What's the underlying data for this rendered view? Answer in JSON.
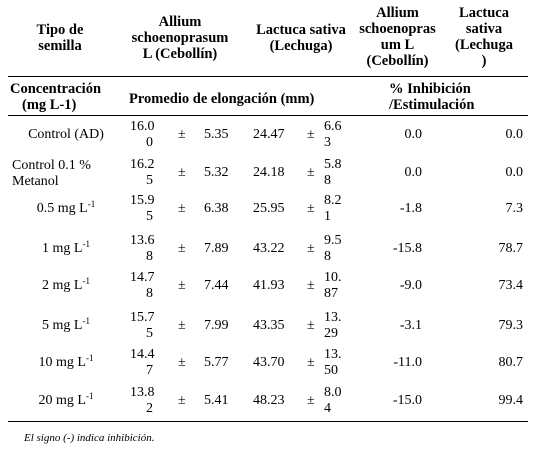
{
  "headers": {
    "tipo": [
      "Tipo de",
      "semilla"
    ],
    "allium": [
      "Allium",
      "schoenoprasum",
      "L (Cebollín)"
    ],
    "lactuca": [
      "Lactuca sativa",
      "(Lechuga)"
    ],
    "allium_inh": [
      "Allium",
      "schoenopras",
      "um L",
      "(Cebollín)"
    ],
    "lactuca_inh": [
      "Lactuca",
      "sativa",
      "(Lechuga",
      ")"
    ]
  },
  "subheaders": {
    "concentracion": [
      "Concentración",
      "(mg L-1)"
    ],
    "promedio": "Promedio de elongación (mm)",
    "inhibicion": [
      "% Inhibición",
      "/Estimulación"
    ]
  },
  "pm": "±",
  "rows": [
    {
      "label": [
        "Control (AD)"
      ],
      "label_sup": "",
      "a_mean": [
        "16.0",
        "0"
      ],
      "a_sd": "5.35",
      "l_mean": "24.47",
      "l_sd": [
        "6.6",
        "3"
      ],
      "a_inh": "0.0",
      "l_inh": "0.0"
    },
    {
      "label": [
        "Control 0.1 %",
        "Metanol"
      ],
      "label_sup": "",
      "a_mean": [
        "16.2",
        "5"
      ],
      "a_sd": "5.32",
      "l_mean": "24.18",
      "l_sd": [
        "5.8",
        "8"
      ],
      "a_inh": "0.0",
      "l_inh": "0.0"
    },
    {
      "label": [
        "0.5 mg L"
      ],
      "label_sup": "-1",
      "a_mean": [
        "15.9",
        "5"
      ],
      "a_sd": "6.38",
      "l_mean": "25.95",
      "l_sd": [
        "8.2",
        "1"
      ],
      "a_inh": "-1.8",
      "l_inh": "7.3"
    },
    {
      "label": [
        "1 mg L"
      ],
      "label_sup": "-1",
      "a_mean": [
        "13.6",
        "8"
      ],
      "a_sd": "7.89",
      "l_mean": "43.22",
      "l_sd": [
        "9.5",
        "8"
      ],
      "a_inh": "-15.8",
      "l_inh": "78.7"
    },
    {
      "label": [
        "2 mg L"
      ],
      "label_sup": "-1",
      "a_mean": [
        "14.7",
        "8"
      ],
      "a_sd": "7.44",
      "l_mean": "41.93",
      "l_sd": [
        "10.",
        "87"
      ],
      "a_inh": "-9.0",
      "l_inh": "73.4"
    },
    {
      "label": [
        "5 mg L"
      ],
      "label_sup": "-1",
      "a_mean": [
        "15.7",
        "5"
      ],
      "a_sd": "7.99",
      "l_mean": "43.35",
      "l_sd": [
        "13.",
        "29"
      ],
      "a_inh": "-3.1",
      "l_inh": "79.3"
    },
    {
      "label": [
        "10 mg L"
      ],
      "label_sup": "-1",
      "a_mean": [
        "14.4",
        "7"
      ],
      "a_sd": "5.77",
      "l_mean": "43.70",
      "l_sd": [
        "13.",
        "50"
      ],
      "a_inh": "-11.0",
      "l_inh": "80.7"
    },
    {
      "label": [
        "20 mg L"
      ],
      "label_sup": "-1",
      "a_mean": [
        "13.8",
        "2"
      ],
      "a_sd": "5.41",
      "l_mean": "48.23",
      "l_sd": [
        "8.0",
        "4"
      ],
      "a_inh": "-15.0",
      "l_inh": "99.4"
    }
  ],
  "footnote": "El signo (-) indica inhibición."
}
